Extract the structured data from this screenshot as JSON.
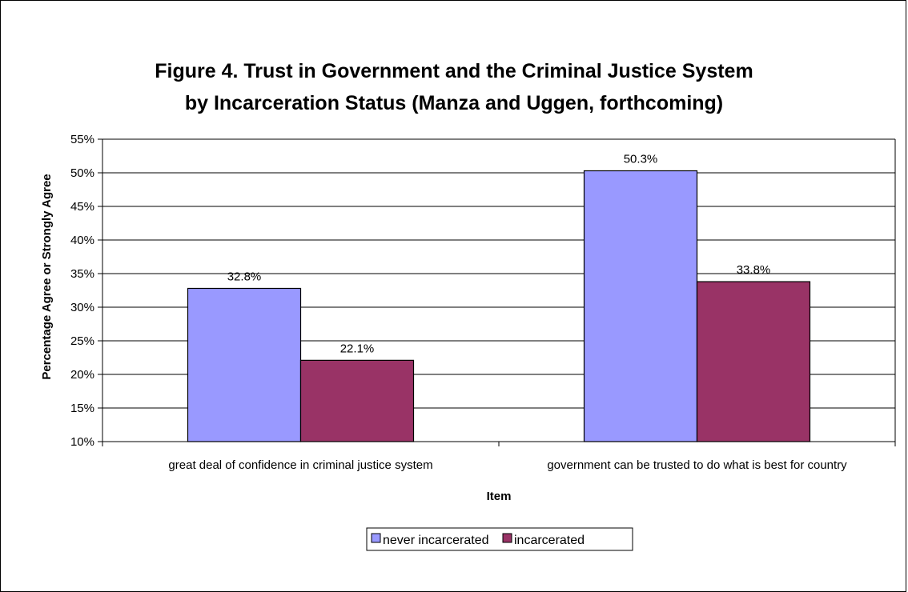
{
  "chart_data": {
    "type": "bar",
    "title_lines": [
      "Figure 4. Trust in Government and the Criminal Justice System",
      "by Incarceration Status (Manza and Uggen, forthcoming)"
    ],
    "xlabel": "Item",
    "ylabel": "Percentage Agree or Strongly Agree",
    "categories": [
      "great deal of confidence in criminal justice system",
      "government can be trusted to do what is best for country"
    ],
    "series": [
      {
        "name": "never incarcerated",
        "color": "#9999ff",
        "values": [
          32.8,
          50.3
        ],
        "labels": [
          "32.8%",
          "50.3%"
        ]
      },
      {
        "name": "incarcerated",
        "color": "#993366",
        "values": [
          22.1,
          33.8
        ],
        "labels": [
          "22.1%",
          "33.8%"
        ]
      }
    ],
    "ylim": [
      10,
      55
    ],
    "yticks": [
      10,
      15,
      20,
      25,
      30,
      35,
      40,
      45,
      50,
      55
    ],
    "ytick_labels": [
      "10%",
      "15%",
      "20%",
      "25%",
      "30%",
      "35%",
      "40%",
      "45%",
      "50%",
      "55%"
    ],
    "grid": true,
    "legend": "bottom"
  }
}
